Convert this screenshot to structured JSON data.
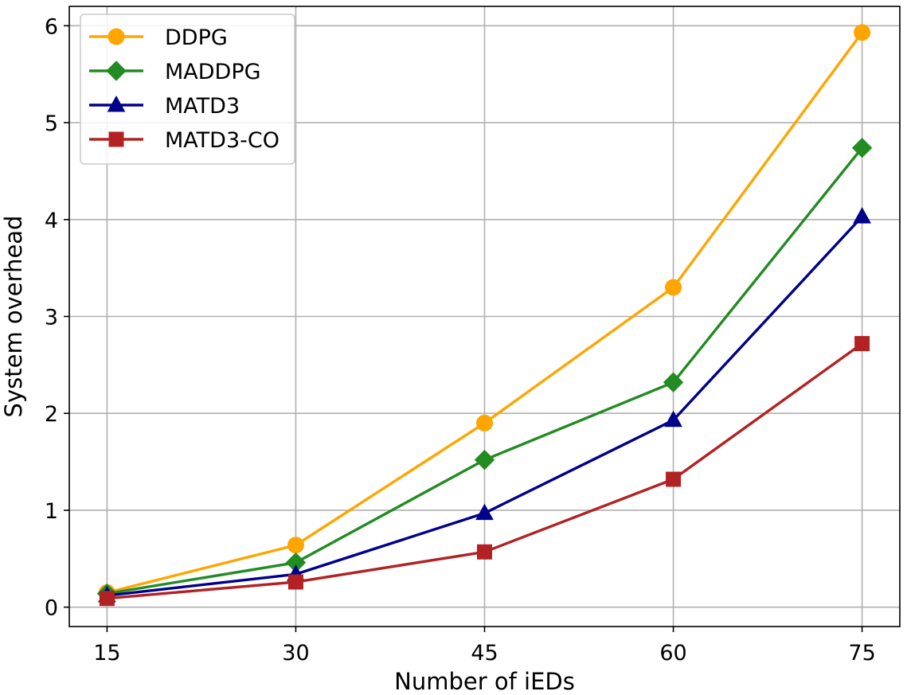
{
  "chart_data": {
    "type": "line",
    "title": "",
    "xlabel": "Number of iEDs",
    "ylabel": "System overhead",
    "x": [
      15,
      30,
      45,
      60,
      75
    ],
    "xticks": [
      "15",
      "30",
      "45",
      "60",
      "75"
    ],
    "yticks": [
      "0",
      "1",
      "2",
      "3",
      "4",
      "5",
      "6"
    ],
    "xlim": [
      12,
      78
    ],
    "ylim": [
      -0.2,
      6.2
    ],
    "grid": true,
    "legend_position": "top-left",
    "series": [
      {
        "name": "DDPG",
        "color": "#ffa500",
        "marker": "circle",
        "values": [
          0.15,
          0.64,
          1.9,
          3.3,
          5.93
        ]
      },
      {
        "name": "MADDPG",
        "color": "#228b22",
        "marker": "diamond",
        "values": [
          0.14,
          0.46,
          1.52,
          2.32,
          4.74
        ]
      },
      {
        "name": "MATD3",
        "color": "#00008b",
        "marker": "triangle",
        "values": [
          0.12,
          0.34,
          0.97,
          1.93,
          4.03
        ]
      },
      {
        "name": "MATD3-CO",
        "color": "#b22222",
        "marker": "square",
        "values": [
          0.09,
          0.26,
          0.57,
          1.32,
          2.72
        ]
      }
    ]
  }
}
